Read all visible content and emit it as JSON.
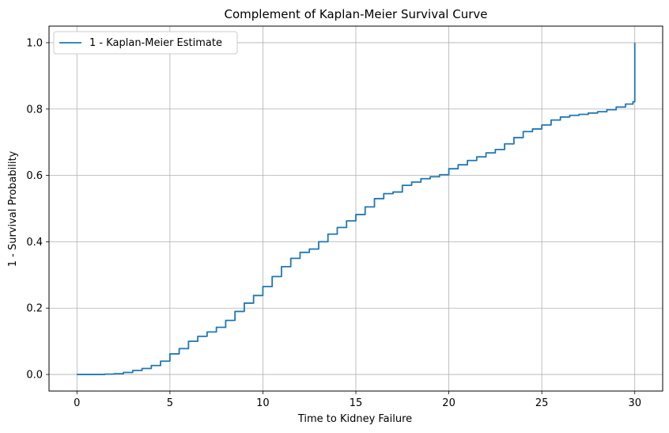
{
  "chart_data": {
    "type": "line",
    "title": "Complement of Kaplan-Meier Survival Curve",
    "xlabel": "Time to Kidney Failure",
    "ylabel": "1 - Survival Probability",
    "xlim": [
      -1.5,
      31.5
    ],
    "ylim": [
      -0.05,
      1.05
    ],
    "xticks": [
      0,
      5,
      10,
      15,
      20,
      25,
      30
    ],
    "xtick_labels": [
      "0",
      "5",
      "10",
      "15",
      "20",
      "25",
      "30"
    ],
    "yticks": [
      0.0,
      0.2,
      0.4,
      0.6,
      0.8,
      1.0
    ],
    "ytick_labels": [
      "0.0",
      "0.2",
      "0.4",
      "0.6",
      "0.8",
      "1.0"
    ],
    "grid": true,
    "legend_position": "top-left",
    "series": [
      {
        "name": "1 - Kaplan-Meier Estimate",
        "color": "#1f77b4",
        "x": [
          0,
          0.5,
          1.0,
          1.5,
          2.0,
          2.5,
          3.0,
          3.5,
          4.0,
          4.5,
          5.0,
          5.5,
          6.0,
          6.5,
          7.0,
          7.5,
          8.0,
          8.5,
          9.0,
          9.5,
          10.0,
          10.5,
          11.0,
          11.5,
          12.0,
          12.5,
          13.0,
          13.5,
          14.0,
          14.5,
          15.0,
          15.5,
          16.0,
          16.5,
          17.0,
          17.5,
          18.0,
          18.5,
          19.0,
          19.5,
          20.0,
          20.5,
          21.0,
          21.5,
          22.0,
          22.5,
          23.0,
          23.5,
          24.0,
          24.5,
          25.0,
          25.5,
          26.0,
          26.5,
          27.0,
          27.5,
          28.0,
          28.5,
          29.0,
          29.5,
          29.9,
          30.0
        ],
        "y": [
          0.0,
          0.0,
          0.0,
          0.001,
          0.002,
          0.006,
          0.012,
          0.018,
          0.027,
          0.04,
          0.062,
          0.078,
          0.1,
          0.115,
          0.128,
          0.142,
          0.163,
          0.19,
          0.215,
          0.238,
          0.265,
          0.295,
          0.325,
          0.35,
          0.368,
          0.378,
          0.4,
          0.423,
          0.443,
          0.463,
          0.482,
          0.505,
          0.53,
          0.545,
          0.55,
          0.57,
          0.58,
          0.59,
          0.596,
          0.602,
          0.62,
          0.632,
          0.645,
          0.656,
          0.668,
          0.678,
          0.695,
          0.714,
          0.732,
          0.74,
          0.752,
          0.767,
          0.776,
          0.781,
          0.784,
          0.788,
          0.792,
          0.798,
          0.806,
          0.815,
          0.822,
          1.0
        ]
      }
    ]
  }
}
